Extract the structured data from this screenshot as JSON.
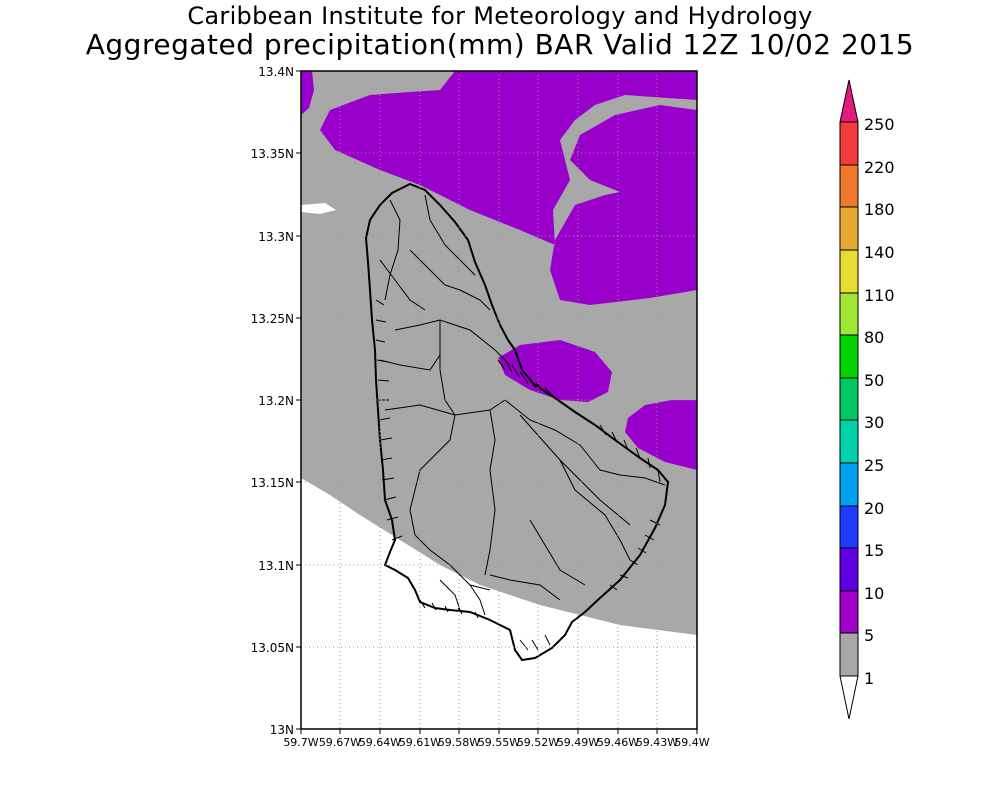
{
  "title_line1": "Caribbean Institute for Meteorology and Hydrology",
  "title_line2": "Aggregated precipitation(mm) BAR Valid 12Z 10/02 2015",
  "y_ticks": [
    "13.4N",
    "13.35N",
    "13.3N",
    "13.25N",
    "13.2N",
    "13.15N",
    "13.1N",
    "13.05N",
    "13N"
  ],
  "x_ticks": [
    "59.7W",
    "59.67W",
    "59.64W",
    "59.61W",
    "59.58W",
    "59.55W",
    "59.52W",
    "59.49W",
    "59.46W",
    "59.43W",
    "59.4W"
  ],
  "colorbar": {
    "labels": [
      "250",
      "220",
      "180",
      "140",
      "110",
      "80",
      "50",
      "30",
      "25",
      "20",
      "15",
      "10",
      "5",
      "1"
    ],
    "colors": {
      "over": "#e6197d",
      "c250": "#f23c3c",
      "c220": "#f0782d",
      "c180": "#e6aa32",
      "c140": "#e6dc32",
      "c110": "#a0e632",
      "c80": "#00d200",
      "c50": "#00c864",
      "c30": "#00d2aa",
      "c25": "#00a0f0",
      "c20": "#1e3cff",
      "c15": "#6000e0",
      "c10": "#a000c8",
      "c5": "#a8a8a8",
      "under": "#ffffff"
    }
  },
  "map_colors": {
    "gray": "#a8a8a8",
    "purple": "#9900cc",
    "land_line": "#000000"
  }
}
